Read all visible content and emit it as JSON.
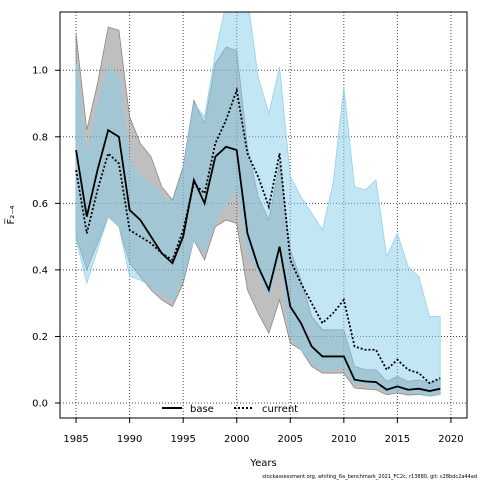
{
  "chart_data": {
    "type": "line",
    "xlabel": "Years",
    "ylabel": "F̅₂₋₄",
    "xlim": [
      1983.5,
      2021.5
    ],
    "ylim": [
      -0.045,
      1.175
    ],
    "x_ticks": [
      "1985",
      "1990",
      "1995",
      "2000",
      "2005",
      "2010",
      "2015",
      "2020"
    ],
    "y_ticks": [
      "0.0",
      "0.2",
      "0.4",
      "0.6",
      "0.8",
      "1.0"
    ],
    "grid": true,
    "grid_x": [
      1985,
      1990,
      1995,
      2000,
      2005,
      2010,
      2015,
      2020
    ],
    "grid_y": [
      0.0,
      0.2,
      0.4,
      0.6,
      0.8,
      1.0
    ],
    "legend_position": "bottom",
    "footer": "stockassessment.org, whiting_6a_benchmark_2021_FC2c, r13880, git: c28bdc2a44ad",
    "series": [
      {
        "name": "base",
        "color": "#000000",
        "band_color": "#808080",
        "line_style": "solid",
        "x": [
          1985,
          1986,
          1987,
          1988,
          1989,
          1990,
          1991,
          1992,
          1993,
          1994,
          1995,
          1996,
          1997,
          1998,
          1999,
          2000,
          2001,
          2002,
          2003,
          2004,
          2005,
          2006,
          2007,
          2008,
          2009,
          2010,
          2011,
          2012,
          2013,
          2014,
          2015,
          2016,
          2017,
          2018,
          2019
        ],
        "y": [
          0.76,
          0.56,
          0.7,
          0.82,
          0.8,
          0.58,
          0.55,
          0.5,
          0.45,
          0.42,
          0.5,
          0.67,
          0.6,
          0.74,
          0.77,
          0.76,
          0.51,
          0.41,
          0.34,
          0.47,
          0.29,
          0.24,
          0.17,
          0.14,
          0.14,
          0.14,
          0.07,
          0.065,
          0.063,
          0.04,
          0.05,
          0.04,
          0.043,
          0.036,
          0.043
        ],
        "lower": [
          0.5,
          0.4,
          0.48,
          0.56,
          0.53,
          0.42,
          0.38,
          0.34,
          0.31,
          0.29,
          0.36,
          0.49,
          0.43,
          0.53,
          0.55,
          0.54,
          0.34,
          0.27,
          0.21,
          0.31,
          0.18,
          0.16,
          0.11,
          0.09,
          0.09,
          0.09,
          0.045,
          0.042,
          0.04,
          0.025,
          0.03,
          0.024,
          0.026,
          0.021,
          0.026
        ],
        "upper": [
          1.11,
          0.82,
          0.96,
          1.13,
          1.12,
          0.86,
          0.78,
          0.74,
          0.65,
          0.61,
          0.71,
          0.91,
          0.84,
          1.02,
          1.07,
          1.06,
          0.77,
          0.62,
          0.55,
          0.72,
          0.46,
          0.37,
          0.26,
          0.22,
          0.22,
          0.22,
          0.11,
          0.1,
          0.1,
          0.065,
          0.08,
          0.065,
          0.07,
          0.06,
          0.07
        ]
      },
      {
        "name": "current",
        "color": "#000000",
        "band_color": "#87CEEB",
        "line_style": "dotted",
        "x": [
          1985,
          1986,
          1987,
          1988,
          1989,
          1990,
          1991,
          1992,
          1993,
          1994,
          1995,
          1996,
          1997,
          1998,
          1999,
          2000,
          2001,
          2002,
          2003,
          2004,
          2005,
          2006,
          2007,
          2008,
          2009,
          2010,
          2011,
          2012,
          2013,
          2014,
          2015,
          2016,
          2017,
          2018,
          2019
        ],
        "y": [
          0.7,
          0.51,
          0.64,
          0.75,
          0.72,
          0.52,
          0.5,
          0.48,
          0.45,
          0.43,
          0.52,
          0.66,
          0.63,
          0.78,
          0.85,
          0.94,
          0.75,
          0.68,
          0.59,
          0.75,
          0.43,
          0.36,
          0.3,
          0.24,
          0.27,
          0.31,
          0.17,
          0.16,
          0.16,
          0.1,
          0.13,
          0.1,
          0.09,
          0.06,
          0.075
        ],
        "lower": [
          0.49,
          0.36,
          0.46,
          0.56,
          0.53,
          0.38,
          0.37,
          0.35,
          0.33,
          0.31,
          0.38,
          0.49,
          0.46,
          0.55,
          0.6,
          0.66,
          0.46,
          0.4,
          0.32,
          0.44,
          0.2,
          0.16,
          0.12,
          0.1,
          0.1,
          0.11,
          0.06,
          0.055,
          0.05,
          0.03,
          0.04,
          0.03,
          0.03,
          0.02,
          0.025
        ],
        "upper": [
          1.02,
          0.73,
          0.89,
          1.01,
          0.98,
          0.72,
          0.68,
          0.66,
          0.62,
          0.6,
          0.7,
          0.9,
          0.86,
          1.05,
          1.2,
          1.4,
          1.22,
          0.98,
          0.87,
          1.01,
          0.68,
          0.62,
          0.57,
          0.52,
          0.66,
          0.95,
          0.65,
          0.64,
          0.67,
          0.44,
          0.51,
          0.41,
          0.38,
          0.26,
          0.26
        ]
      }
    ]
  }
}
